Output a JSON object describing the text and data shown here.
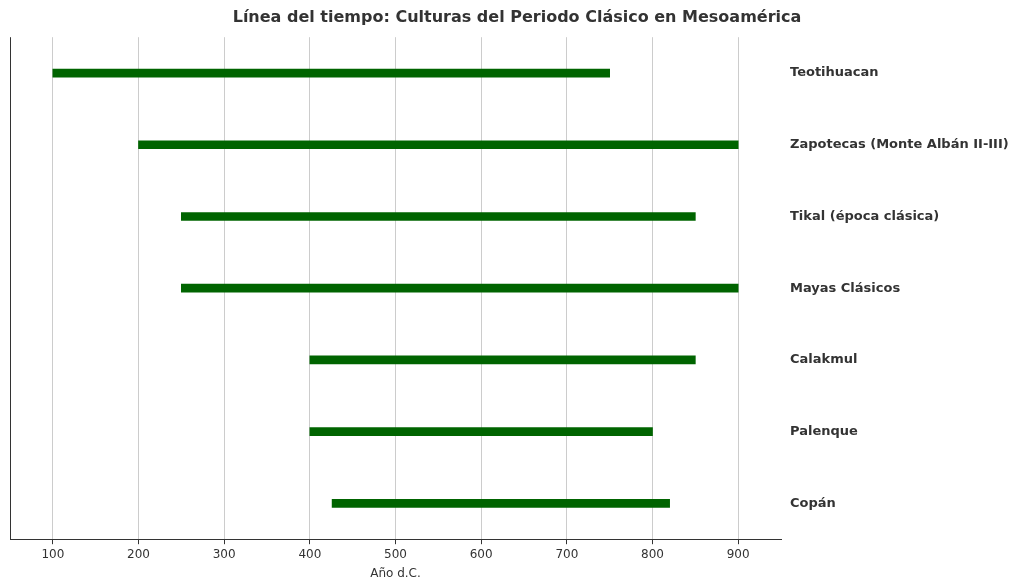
{
  "chart_data": {
    "type": "bar",
    "orientation": "horizontal",
    "title": "Línea del tiempo: Culturas del Periodo Clásico en Mesoamérica",
    "xlabel": "Año d.C.",
    "categories": [
      "Teotihuacan",
      "Zapotecas (Monte Albán II-III)",
      "Tikal (época clásica)",
      "Mayas Clásicos",
      "Calakmul",
      "Palenque",
      "Copán"
    ],
    "base": [
      100,
      200,
      250,
      250,
      400,
      400,
      426
    ],
    "values": [
      650,
      700,
      600,
      650,
      450,
      400,
      394
    ],
    "color": "#006400",
    "xlim": [
      50,
      950
    ],
    "xticks": [
      100,
      200,
      300,
      400,
      500,
      600,
      700,
      800,
      900
    ],
    "grid": "x"
  }
}
